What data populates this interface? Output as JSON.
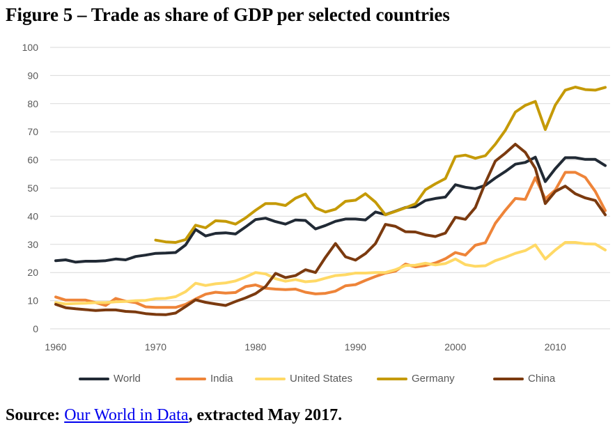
{
  "title": "Figure 5 – Trade as share of GDP per selected countries",
  "source": {
    "prefix": "Source: ",
    "link_text": "Our World in Data",
    "suffix": ", extracted May 2017."
  },
  "chart_data": {
    "type": "line",
    "title": "",
    "xlabel": "",
    "ylabel": "",
    "xlim": [
      1960,
      2015
    ],
    "ylim": [
      0,
      100
    ],
    "x_ticks": [
      "1960",
      "1970",
      "1980",
      "1990",
      "2000",
      "2010"
    ],
    "y_ticks": [
      "0",
      "10",
      "20",
      "30",
      "40",
      "50",
      "60",
      "70",
      "80",
      "90",
      "100"
    ],
    "grid": "horizontal",
    "legend_position": "bottom",
    "series": [
      {
        "name": "World",
        "color": "#212a35",
        "start_year": 1960,
        "values": [
          24.2,
          24.5,
          23.7,
          24,
          24,
          24.2,
          24.8,
          24.5,
          25.7,
          26.2,
          26.8,
          26.9,
          27.1,
          29.8,
          35.3,
          33,
          33.9,
          34.1,
          33.7,
          36.2,
          38.8,
          39.3,
          38.1,
          37.2,
          38.7,
          38.5,
          35.5,
          36.7,
          38.2,
          39,
          39,
          38.7,
          41.5,
          40.6,
          41.8,
          43.1,
          43.4,
          45.6,
          46.3,
          46.8,
          51.2,
          50.3,
          49.8,
          51,
          53.6,
          55.9,
          58.5,
          59.1,
          61,
          52.3,
          56.9,
          60.8,
          60.8,
          60.2,
          60.2,
          58
        ]
      },
      {
        "name": "India",
        "color": "#ee8439",
        "start_year": 1960,
        "values": [
          11.3,
          10.2,
          10.2,
          10.2,
          9.3,
          8.3,
          10.8,
          9.8,
          9.3,
          7.8,
          7.6,
          7.6,
          7.6,
          8.7,
          10.6,
          12.3,
          13,
          12.7,
          12.9,
          15,
          15.6,
          14.4,
          14.1,
          13.9,
          14.1,
          13,
          12.4,
          12.6,
          13.4,
          15.3,
          15.7,
          17.2,
          18.6,
          19.8,
          20.5,
          23,
          22,
          22.5,
          23.4,
          24.9,
          27.1,
          26.2,
          29.7,
          30.6,
          37.5,
          42.1,
          46.3,
          46,
          53.7,
          46.2,
          49.3,
          55.6,
          55.6,
          53.8,
          48.8,
          42
        ]
      },
      {
        "name": "United States",
        "color": "#ffd966",
        "start_year": 1960,
        "values": [
          9.3,
          8.8,
          9,
          9.1,
          9.3,
          9.3,
          9.6,
          9.7,
          10,
          10.1,
          10.7,
          10.8,
          11.4,
          13.2,
          16.2,
          15.4,
          16,
          16.3,
          17,
          18.4,
          20,
          19.5,
          17.8,
          16.9,
          17.5,
          16.7,
          17,
          18,
          18.9,
          19.2,
          19.8,
          19.8,
          20,
          20,
          21,
          22.5,
          22.6,
          23.3,
          22.7,
          23.2,
          24.8,
          22.8,
          22.2,
          22.4,
          24.2,
          25.4,
          26.8,
          27.8,
          29.8,
          24.8,
          28,
          30.7,
          30.7,
          30.2,
          30.1,
          28
        ]
      },
      {
        "name": "Germany",
        "color": "#c59a07",
        "start_year": 1970,
        "values": [
          31.5,
          30.9,
          30.7,
          31.7,
          36.8,
          35.9,
          38.4,
          38.2,
          37.2,
          39.4,
          42.1,
          44.5,
          44.5,
          43.8,
          46.4,
          47.9,
          43,
          41.5,
          42.5,
          45.3,
          45.7,
          48,
          45,
          40.5,
          41.7,
          43,
          44.4,
          49.4,
          51.5,
          53.4,
          61.2,
          61.7,
          60.6,
          61.5,
          65.6,
          70.5,
          77,
          79.4,
          80.8,
          70.8,
          79.5,
          84.8,
          85.9,
          85,
          84.8,
          85.8
        ]
      },
      {
        "name": "China",
        "color": "#7b3a0f",
        "start_year": 1960,
        "values": [
          8.7,
          7.5,
          7.1,
          6.8,
          6.5,
          6.7,
          6.7,
          6.2,
          6,
          5.4,
          5.1,
          5,
          5.6,
          7.9,
          10.3,
          9.4,
          8.8,
          8.3,
          9.7,
          11,
          12.5,
          15,
          19.7,
          18.2,
          18.9,
          21,
          20,
          25.4,
          30.3,
          25.6,
          24.4,
          26.7,
          30.3,
          37.1,
          36.4,
          34.5,
          34.4,
          33.4,
          32.8,
          34,
          39.6,
          38.9,
          43.1,
          51.9,
          59.6,
          62.4,
          65.6,
          62.7,
          57,
          44.5,
          48.8,
          50.7,
          48,
          46.5,
          45.6,
          40.5
        ]
      }
    ]
  }
}
